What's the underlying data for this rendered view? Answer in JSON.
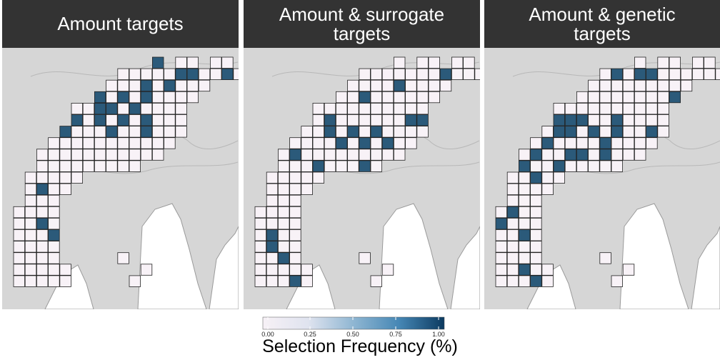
{
  "panels": [
    {
      "title": "Amount targets",
      "selected": [
        [
          12,
          0
        ],
        [
          14,
          1
        ],
        [
          15,
          1
        ],
        [
          18,
          1
        ],
        [
          11,
          2
        ],
        [
          13,
          2
        ],
        [
          17,
          2
        ],
        [
          7,
          3
        ],
        [
          9,
          3
        ],
        [
          11,
          3
        ],
        [
          7,
          4
        ],
        [
          8,
          4
        ],
        [
          10,
          4
        ],
        [
          5,
          5
        ],
        [
          7,
          5
        ],
        [
          9,
          5
        ],
        [
          11,
          5
        ],
        [
          4,
          6
        ],
        [
          8,
          6
        ],
        [
          11,
          6
        ],
        [
          2,
          11
        ],
        [
          2,
          14
        ],
        [
          3,
          15
        ]
      ]
    },
    {
      "title": "Amount & surrogate\ntargets",
      "selected": [
        [
          16,
          1
        ],
        [
          12,
          2
        ],
        [
          9,
          3
        ],
        [
          16,
          3
        ],
        [
          6,
          5
        ],
        [
          13,
          5
        ],
        [
          14,
          5
        ],
        [
          3,
          6
        ],
        [
          6,
          6
        ],
        [
          8,
          6
        ],
        [
          10,
          6
        ],
        [
          15,
          6
        ],
        [
          2,
          7
        ],
        [
          7,
          7
        ],
        [
          9,
          7
        ],
        [
          11,
          7
        ],
        [
          0,
          8
        ],
        [
          3,
          8
        ],
        [
          5,
          9
        ],
        [
          9,
          9
        ],
        [
          0,
          10
        ],
        [
          1,
          15
        ],
        [
          1,
          16
        ],
        [
          2,
          17
        ],
        [
          3,
          19
        ]
      ]
    },
    {
      "title": "Amount & genetic\ntargets",
      "selected": [
        [
          10,
          1
        ],
        [
          12,
          1
        ],
        [
          13,
          1
        ],
        [
          15,
          3
        ],
        [
          3,
          5
        ],
        [
          5,
          5
        ],
        [
          6,
          5
        ],
        [
          7,
          5
        ],
        [
          10,
          5
        ],
        [
          2,
          6
        ],
        [
          5,
          6
        ],
        [
          6,
          6
        ],
        [
          8,
          6
        ],
        [
          10,
          6
        ],
        [
          13,
          6
        ],
        [
          4,
          7
        ],
        [
          9,
          7
        ],
        [
          0,
          8
        ],
        [
          3,
          8
        ],
        [
          6,
          8
        ],
        [
          7,
          8
        ],
        [
          9,
          8
        ],
        [
          2,
          9
        ],
        [
          5,
          9
        ],
        [
          3,
          10
        ],
        [
          1,
          13
        ],
        [
          0,
          14
        ],
        [
          2,
          15
        ],
        [
          2,
          18
        ],
        [
          3,
          19
        ]
      ]
    }
  ],
  "legend": {
    "title": "Selection Frequency (%)",
    "ticks": [
      "0.00",
      "0.25",
      "0.50",
      "0.75",
      "1.00"
    ],
    "colors": [
      "#f7f1f6",
      "#dfe3ef",
      "#8fb6d2",
      "#4687b5",
      "#0c3a60"
    ]
  },
  "colors": {
    "strip": "#333333",
    "map_background": "#d6d6d6",
    "water": "#ffffff",
    "cell_unselected": "#f8f2f7",
    "cell_selected": "#2b5a7a",
    "cell_border": "#222222"
  }
}
